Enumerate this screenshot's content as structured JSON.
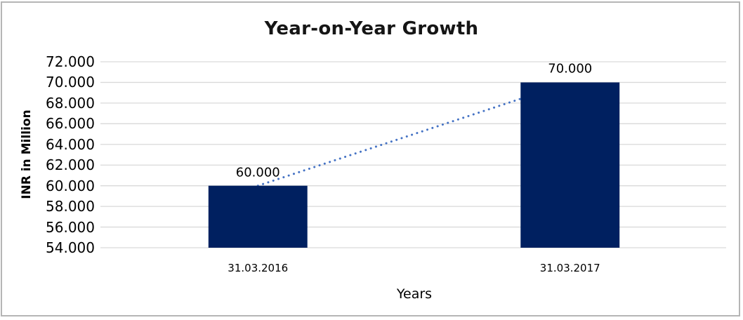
{
  "frame": {
    "border_color": "#b5b5b5",
    "background_color": "#ffffff"
  },
  "chart_data": {
    "type": "bar",
    "title": "Year-on-Year Growth",
    "categories": [
      "31.03.2016",
      "31.03.2017"
    ],
    "values": [
      60000,
      70000
    ],
    "value_labels": [
      "60.000",
      "70.000"
    ],
    "xlabel": "Years",
    "ylabel": "INR in Million",
    "ylim": [
      54000,
      72000
    ],
    "ytick_step": 2000,
    "ytick_labels": [
      "54.000",
      "56.000",
      "58.000",
      "60.000",
      "62.000",
      "64.000",
      "66.000",
      "68.000",
      "70.000",
      "72.000"
    ],
    "grid": true,
    "legend": false,
    "bar_color": "#002060",
    "gridline_color": "#d9d9d9",
    "trendline": {
      "type": "linear",
      "style": "dotted",
      "color": "#4472c4"
    }
  }
}
